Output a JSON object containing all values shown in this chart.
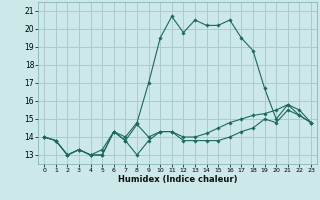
{
  "xlabel": "Humidex (Indice chaleur)",
  "bg_color": "#cde8e8",
  "grid_color": "#aacccc",
  "line_color": "#1a6b5a",
  "x_ticks": [
    0,
    1,
    2,
    3,
    4,
    5,
    6,
    7,
    8,
    9,
    10,
    11,
    12,
    13,
    14,
    15,
    16,
    17,
    18,
    19,
    20,
    21,
    22,
    23
  ],
  "y_ticks": [
    13,
    14,
    15,
    16,
    17,
    18,
    19,
    20,
    21
  ],
  "xlim": [
    -0.5,
    23.5
  ],
  "ylim": [
    12.5,
    21.5
  ],
  "series": [
    [
      14.0,
      13.8,
      13.0,
      13.3,
      13.0,
      13.0,
      14.3,
      13.8,
      14.7,
      14.0,
      14.3,
      14.3,
      13.8,
      13.8,
      13.8,
      13.8,
      14.0,
      14.3,
      14.5,
      15.0,
      14.8,
      15.5,
      15.2,
      14.8
    ],
    [
      14.0,
      13.8,
      13.0,
      13.3,
      13.0,
      13.0,
      14.3,
      13.8,
      13.0,
      13.8,
      14.3,
      14.3,
      14.0,
      14.0,
      14.2,
      14.5,
      14.8,
      15.0,
      15.2,
      15.3,
      15.5,
      15.8,
      15.5,
      14.8
    ],
    [
      14.0,
      13.8,
      13.0,
      13.3,
      13.0,
      13.3,
      14.3,
      14.0,
      14.8,
      17.0,
      19.5,
      20.7,
      19.8,
      20.5,
      20.2,
      20.2,
      20.5,
      19.5,
      18.8,
      16.7,
      15.0,
      15.8,
      15.2,
      14.8
    ]
  ]
}
